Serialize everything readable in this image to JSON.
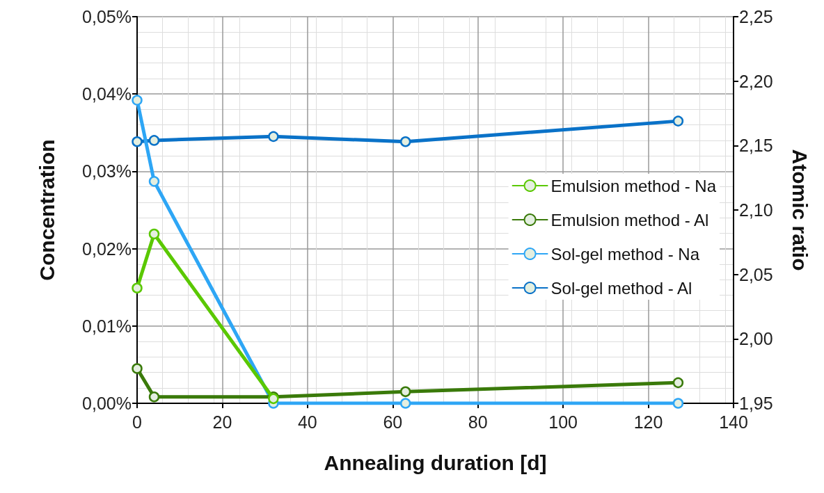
{
  "chart_data": {
    "type": "line",
    "xlabel": "Annealing duration [d]",
    "ylabel": "Concentration",
    "y2label": "Atomic ratio",
    "x": [
      0,
      4,
      32,
      63,
      127
    ],
    "series": [
      {
        "name": "Emulsion method - Na",
        "color": "#5ac800",
        "values": [
          0.0149,
          0.0219,
          0.0006,
          null,
          null
        ]
      },
      {
        "name": "Emulsion method - Al",
        "color": "#3a7a0a",
        "axis": "y2",
        "values": [
          1.977,
          1.955,
          1.955,
          1.959,
          1.966
        ]
      },
      {
        "name": "Sol-gel method - Na",
        "color": "#2ea6f5",
        "values": [
          0.0392,
          0.0287,
          0,
          0,
          0
        ]
      },
      {
        "name": "Sol-gel method - Al",
        "color": "#0a72c8",
        "axis": "y2",
        "values": [
          2.153,
          2.154,
          2.157,
          2.153,
          2.169
        ]
      }
    ],
    "xlim": [
      0,
      140
    ],
    "xticks": [
      0,
      20,
      40,
      60,
      80,
      100,
      120,
      140
    ],
    "ylim": [
      0,
      0.05
    ],
    "yticks": [
      {
        "value": 0,
        "label": "0,00%"
      },
      {
        "value": 0.01,
        "label": "0,01%"
      },
      {
        "value": 0.02,
        "label": "0,02%"
      },
      {
        "value": 0.03,
        "label": "0,03%"
      },
      {
        "value": 0.04,
        "label": "0,04%"
      },
      {
        "value": 0.05,
        "label": "0,05%"
      }
    ],
    "y2lim": [
      1.95,
      2.25
    ],
    "y2ticks": [
      {
        "value": 1.95,
        "label": "1,95"
      },
      {
        "value": 2.0,
        "label": "2,00"
      },
      {
        "value": 2.05,
        "label": "2,05"
      },
      {
        "value": 2.1,
        "label": "2,10"
      },
      {
        "value": 2.15,
        "label": "2,15"
      },
      {
        "value": 2.2,
        "label": "2,20"
      },
      {
        "value": 2.25,
        "label": "2,25"
      }
    ],
    "grid": true,
    "legend": "right",
    "marker": "circle",
    "line_style": "solid"
  }
}
